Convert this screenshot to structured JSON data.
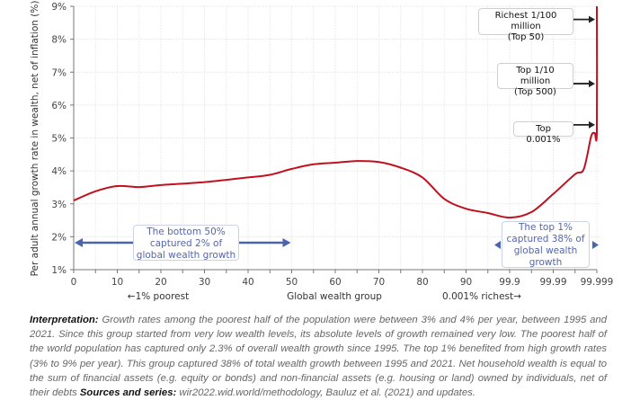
{
  "chart_data": {
    "type": "line",
    "title": "",
    "xlabel": "Global wealth group",
    "ylabel": "Per adult annual growth rate in wealth, net of inflation (%)",
    "x_tick_labels": [
      "0",
      "10",
      "20",
      "30",
      "40",
      "50",
      "60",
      "70",
      "80",
      "90",
      "99.9",
      "99.99",
      "99.999"
    ],
    "x_sub_labels": {
      "left": "←1% poorest",
      "center": "Global wealth group",
      "right": "0.001% richest→"
    },
    "y_tick_labels": [
      "1%",
      "2%",
      "3%",
      "4%",
      "5%",
      "6%",
      "7%",
      "8%",
      "9%"
    ],
    "ylim": [
      1,
      9
    ],
    "grid": true,
    "series": [
      {
        "name": "Growth rate",
        "color": "#c0111f",
        "x_index": [
          0,
          0.5,
          1,
          1.5,
          2,
          3,
          4,
          4.5,
          5,
          5.5,
          6,
          6.5,
          7,
          7.5,
          8,
          8.5,
          9,
          9.5,
          10,
          10.5,
          11,
          11.5,
          11.7,
          11.87,
          11.95,
          12,
          12
        ],
        "values": [
          3.1,
          3.38,
          3.54,
          3.51,
          3.57,
          3.66,
          3.8,
          3.88,
          4.06,
          4.2,
          4.25,
          4.3,
          4.27,
          4.1,
          3.8,
          3.15,
          2.85,
          2.72,
          2.58,
          2.75,
          3.3,
          3.9,
          4.05,
          5.05,
          5.15,
          5.2,
          9.0
        ]
      }
    ],
    "annotations": [
      {
        "text_lines": [
          "The bottom 50%",
          "captured 2% of",
          "global wealth growth"
        ],
        "range": [
          "0",
          "50"
        ]
      },
      {
        "text_lines": [
          "The top 1%",
          "captured 38% of",
          "global wealth",
          "growth"
        ],
        "range": [
          "99",
          "99.999"
        ]
      }
    ],
    "callouts": [
      {
        "text_lines": [
          "Richest 1/100 million",
          "(Top 50)"
        ],
        "value": 8.6
      },
      {
        "text_lines": [
          "Top 1/10 million",
          "(Top 500)"
        ],
        "value": 6.65
      },
      {
        "text_lines": [
          "Top 0.001%"
        ],
        "value": 5.4
      }
    ]
  },
  "note": {
    "interpretation_label": "Interpretation:",
    "interpretation_text": " Growth rates among the poorest half of the population were between 3% and 4% per year, between 1995 and 2021. Since this group started from very low wealth levels, its absolute levels of growth remained very low. The poorest half of the world population has captured only 2.3% of overall wealth growth since 1995. The top 1% benefited from high growth rates (3% to 9% per year). This group captured 38% of total wealth growth between 1995 and 2021. Net household wealth is equal to the sum of financial assets (e.g. equity or bonds) and non-financial assets (e.g. housing or land) owned by individuals, net of their debts ",
    "sources_label": "Sources and series:",
    "sources_text": " wir2022.wid.world/methodology, Bauluz et al. (2021) and updates."
  }
}
